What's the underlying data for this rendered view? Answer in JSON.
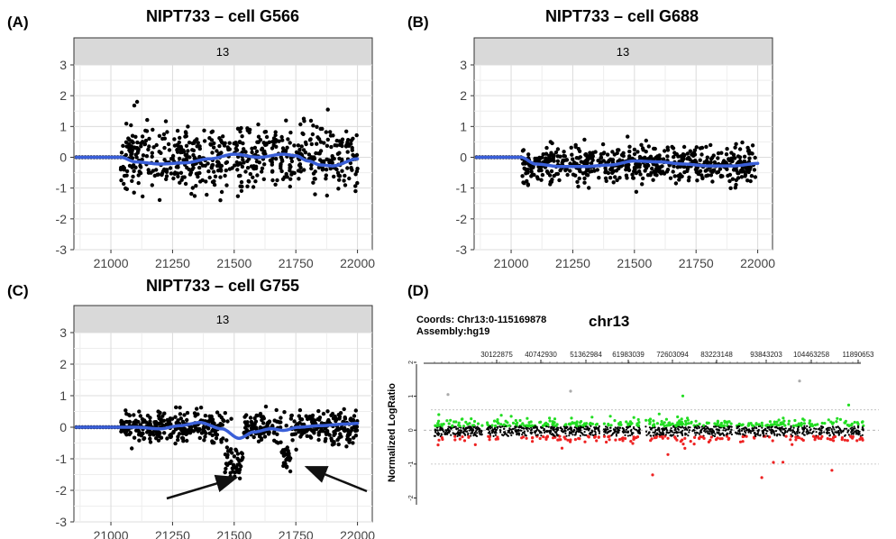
{
  "chart_data": [
    {
      "panel": "(A)",
      "type": "scatter",
      "title": "NIPT733 – cell G566",
      "facet_label": "13",
      "xticks": [
        "21000",
        "21250",
        "21500",
        "21750",
        "22000"
      ],
      "yticks": [
        "3",
        "2",
        "1",
        "0",
        "-1",
        "-2",
        "-3"
      ],
      "xlim": [
        20850,
        22060
      ],
      "ylim": [
        -3,
        3
      ],
      "grid": true,
      "point_color": "#000000",
      "smooth_color": "#3a5fd8",
      "flat_x": [
        20860,
        21040
      ],
      "points": {
        "x_start": 21040,
        "x_end": 22000,
        "count": 620,
        "center": 0,
        "spread": 0.55,
        "min": -1.8,
        "max": 1.8
      },
      "smooth": {
        "x": [
          20860,
          21040,
          21100,
          21200,
          21300,
          21400,
          21500,
          21600,
          21700,
          21750,
          21800,
          21850,
          21900,
          22000
        ],
        "y": [
          0,
          0,
          -0.15,
          -0.22,
          -0.18,
          -0.05,
          0.1,
          0.0,
          0.1,
          0.05,
          -0.12,
          -0.25,
          -0.28,
          -0.05
        ]
      }
    },
    {
      "panel": "(B)",
      "type": "scatter",
      "title": "NIPT733 – cell G688",
      "facet_label": "13",
      "xticks": [
        "21000",
        "21250",
        "21500",
        "21750",
        "22000"
      ],
      "yticks": [
        "3",
        "2",
        "1",
        "0",
        "-1",
        "-2",
        "-3"
      ],
      "xlim": [
        20850,
        22060
      ],
      "ylim": [
        -3,
        3
      ],
      "grid": true,
      "point_color": "#000000",
      "smooth_color": "#3a5fd8",
      "flat_x": [
        20860,
        21040
      ],
      "points": {
        "x_start": 21040,
        "x_end": 22000,
        "count": 600,
        "center": -0.22,
        "spread": 0.3,
        "min": -1.7,
        "max": 1.2
      },
      "smooth": {
        "x": [
          20860,
          21040,
          21100,
          21200,
          21300,
          21400,
          21500,
          21600,
          21700,
          21800,
          21900,
          22000
        ],
        "y": [
          0,
          0,
          -0.22,
          -0.3,
          -0.3,
          -0.25,
          -0.12,
          -0.15,
          -0.22,
          -0.28,
          -0.28,
          -0.2
        ]
      }
    },
    {
      "panel": "(C)",
      "type": "scatter",
      "title": "NIPT733 – cell G755",
      "facet_label": "13",
      "xticks": [
        "21000",
        "21250",
        "21500",
        "21750",
        "22000"
      ],
      "yticks": [
        "3",
        "2",
        "1",
        "0",
        "-1",
        "-2",
        "-3"
      ],
      "xlim": [
        20850,
        22060
      ],
      "ylim": [
        -3,
        3
      ],
      "grid": true,
      "point_color": "#000000",
      "smooth_color": "#3a5fd8",
      "flat_x": [
        20860,
        21040
      ],
      "points": {
        "x_start": 21040,
        "x_end": 22000,
        "count": 620,
        "center": 0,
        "spread": 0.25,
        "min": -1.9,
        "max": 0.8
      },
      "dips": [
        {
          "x_from": 21460,
          "x_to": 21540,
          "depth": -1.4
        },
        {
          "x_from": 21690,
          "x_to": 21730,
          "depth": -1.3
        }
      ],
      "smooth": {
        "x": [
          20860,
          21040,
          21100,
          21200,
          21280,
          21360,
          21450,
          21520,
          21580,
          21650,
          21700,
          21760,
          21850,
          21950,
          22000
        ],
        "y": [
          0,
          0,
          0,
          -0.05,
          0.05,
          0.15,
          -0.05,
          -0.35,
          -0.15,
          -0.05,
          -0.1,
          0.0,
          0.05,
          0.1,
          0.12
        ]
      },
      "annotation": "arrows pointing to the two drops near 21500 and 21720"
    },
    {
      "panel": "(D)",
      "type": "scatter",
      "title": "chr13",
      "coords_label": "Coords: Chr13:0-115169878",
      "assembly_label": "Assembly:hg19",
      "ylabel": "Normalized LogRatio",
      "xticks": [
        "30122875",
        "40742930",
        "51362984",
        "61983039",
        "72603094",
        "83223148",
        "93843203",
        "104463258",
        "11890653"
      ],
      "yticks": [
        "2",
        "1",
        "0",
        "-1",
        "-2"
      ],
      "ylim": [
        -2.2,
        2
      ],
      "threshold_lines": [
        0.6,
        -1.0
      ],
      "colors": {
        "normal": "#000000",
        "gain": "#22dd22",
        "loss": "#ee2222"
      },
      "points": {
        "count": 1700,
        "center": 0,
        "spread": 0.14,
        "gain_above": 0.12,
        "loss_below": -0.18,
        "min": -1.4,
        "max": 1.5
      }
    }
  ]
}
